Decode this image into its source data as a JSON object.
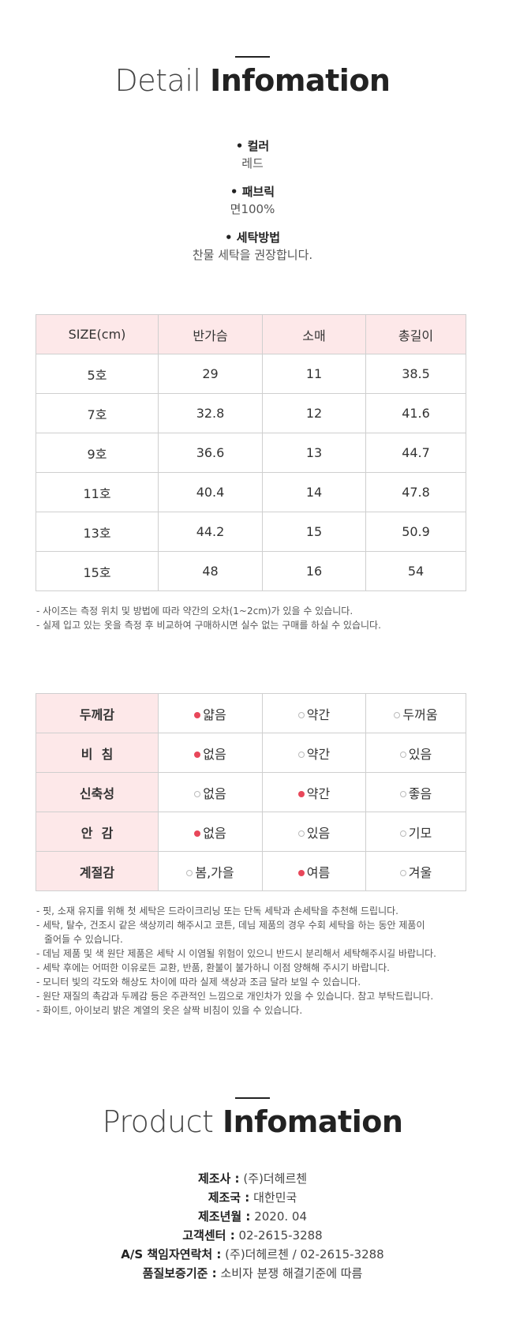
{
  "detail": {
    "title_light": "Detail",
    "title_bold": "Infomation",
    "specs": [
      {
        "label": "• 컬러",
        "value": "레드"
      },
      {
        "label": "• 패브릭",
        "value": "면100%"
      },
      {
        "label": "• 세탁방법",
        "value": "찬물 세탁을 권장합니다."
      }
    ]
  },
  "size_table": {
    "headers": [
      "SIZE(cm)",
      "반가슴",
      "소매",
      "총길이"
    ],
    "rows": [
      [
        "5호",
        "29",
        "11",
        "38.5"
      ],
      [
        "7호",
        "32.8",
        "12",
        "41.6"
      ],
      [
        "9호",
        "36.6",
        "13",
        "44.7"
      ],
      [
        "11호",
        "40.4",
        "14",
        "47.8"
      ],
      [
        "13호",
        "44.2",
        "15",
        "50.9"
      ],
      [
        "15호",
        "48",
        "16",
        "54"
      ]
    ],
    "notes": [
      "- 사이즈는 측정 위치 및 방법에 따라 약간의 오차(1~2cm)가 있을 수 있습니다.",
      "- 실제 입고 있는 옷을 측정 후 비교하여 구매하시면 실수 없는 구매를 하실 수 있습니다."
    ]
  },
  "fit_table": {
    "accent_color": "#e8475a",
    "rows": [
      {
        "label": "두께감",
        "options": [
          {
            "text": "얇음",
            "selected": true
          },
          {
            "text": "약간",
            "selected": false
          },
          {
            "text": "두꺼움",
            "selected": false
          }
        ]
      },
      {
        "label": "비  침",
        "options": [
          {
            "text": "없음",
            "selected": true
          },
          {
            "text": "약간",
            "selected": false
          },
          {
            "text": "있음",
            "selected": false
          }
        ]
      },
      {
        "label": "신축성",
        "options": [
          {
            "text": "없음",
            "selected": false
          },
          {
            "text": "약간",
            "selected": true
          },
          {
            "text": "좋음",
            "selected": false
          }
        ]
      },
      {
        "label": "안  감",
        "options": [
          {
            "text": "없음",
            "selected": true
          },
          {
            "text": "있음",
            "selected": false
          },
          {
            "text": "기모",
            "selected": false
          }
        ]
      },
      {
        "label": "계절감",
        "options": [
          {
            "text": "봄,가을",
            "selected": false
          },
          {
            "text": "여름",
            "selected": true
          },
          {
            "text": "겨울",
            "selected": false
          }
        ]
      }
    ],
    "notes": [
      "- 핏, 소재 유지를 위해 첫 세탁은 드라이크리닝 또는 단독 세탁과 손세탁을 추천해 드립니다.",
      "- 세탁, 탈수, 건조시 같은 색상끼리 해주시고 코튼, 데님 제품의 경우 수회 세탁을 하는 동안 제품이",
      "줄어들 수 있습니다.",
      "- 데님 제품 및 색 원단 제품은 세탁 시 이염될 위험이 있으니 반드시 분리해서 세탁해주시길 바랍니다.",
      "- 세탁 후에는 어떠한 이유로든 교환, 반품, 환불이 불가하니 이점 양해해 주시기 바랍니다.",
      "- 모니터 빛의 각도와 해상도 차이에 따라 실제 색상과 조금 달라 보일 수 있습니다.",
      "- 원단 재질의 촉감과 두께감 등은 주관적인 느낌으로 개인차가 있을 수 있습니다. 참고 부탁드립니다.",
      "- 화이트, 아이보리 밝은 계열의 옷은 살짝 비침이 있을 수 있습니다."
    ]
  },
  "product": {
    "title_light": "Product",
    "title_bold": "Infomation",
    "items": [
      {
        "key": "제조사 :",
        "value": "(주)더헤르첸"
      },
      {
        "key": "제조국 :",
        "value": "대한민국"
      },
      {
        "key": "제조년월 :",
        "value": "2020. 04"
      },
      {
        "key": "고객센터 :",
        "value": "02-2615-3288"
      },
      {
        "key": "A/S 책임자연락처 :",
        "value": "(주)더헤르첸 / 02-2615-3288"
      },
      {
        "key": "품질보증기준 :",
        "value": "소비자 분쟁 해결기준에 따름"
      }
    ]
  }
}
